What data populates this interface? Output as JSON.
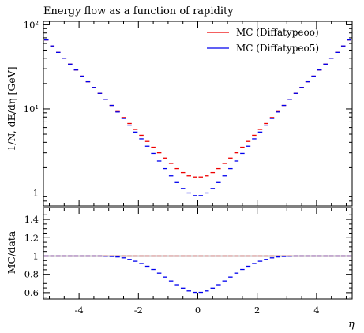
{
  "chart_data": [
    {
      "type": "line",
      "title": "Energy flow as a function of rapidity",
      "xlabel": "η",
      "ylabel": "1/N, dE/dη [GeV]",
      "yscale": "log",
      "ylim": [
        0.7,
        110
      ],
      "xlim": [
        -5.2,
        5.2
      ],
      "y_tick_labels": [
        "1",
        "10¹",
        "10²"
      ],
      "legend_position": "top-right",
      "x": [
        -5.1,
        -4.9,
        -4.7,
        -4.5,
        -4.3,
        -4.1,
        -3.9,
        -3.7,
        -3.5,
        -3.3,
        -3.1,
        -2.9,
        -2.7,
        -2.5,
        -2.3,
        -2.1,
        -1.9,
        -1.7,
        -1.5,
        -1.3,
        -1.1,
        -0.9,
        -0.7,
        -0.5,
        -0.3,
        -0.1,
        0.1,
        0.3,
        0.5,
        0.7,
        0.9,
        1.1,
        1.3,
        1.5,
        1.7,
        1.9,
        2.1,
        2.3,
        2.5,
        2.7,
        2.9,
        3.1,
        3.3,
        3.5,
        3.7,
        3.9,
        4.1,
        4.3,
        4.5,
        4.7,
        4.9,
        5.1
      ],
      "series": [
        {
          "name": "MC (Diffatypeoo)",
          "color": "#ee0000",
          "values": [
            66,
            56,
            47,
            40,
            34,
            29,
            24.5,
            21,
            18,
            15.3,
            13,
            11,
            9.3,
            7.9,
            6.7,
            5.7,
            4.85,
            4.1,
            3.5,
            3.0,
            2.6,
            2.25,
            1.95,
            1.75,
            1.6,
            1.55,
            1.55,
            1.6,
            1.75,
            1.95,
            2.25,
            2.6,
            3.0,
            3.5,
            4.1,
            4.85,
            5.7,
            6.7,
            7.9,
            9.3,
            11,
            13,
            15.3,
            18,
            21,
            24.5,
            29,
            34,
            40,
            47,
            56,
            66
          ]
        },
        {
          "name": "MC (Diffatypeo5)",
          "color": "#0000ee",
          "values": [
            66,
            56,
            47,
            40,
            34,
            29,
            24.5,
            21,
            18,
            15.3,
            13,
            11,
            9.2,
            7.7,
            6.4,
            5.3,
            4.4,
            3.6,
            2.95,
            2.4,
            1.95,
            1.6,
            1.33,
            1.13,
            1.0,
            0.93,
            0.93,
            1.0,
            1.13,
            1.33,
            1.6,
            1.95,
            2.4,
            2.95,
            3.6,
            4.4,
            5.3,
            6.4,
            7.7,
            9.2,
            11,
            13,
            15.3,
            18,
            21,
            24.5,
            29,
            34,
            40,
            47,
            56,
            66
          ]
        }
      ]
    },
    {
      "type": "line",
      "xlabel": "η",
      "ylabel": "MC/data",
      "ylim": [
        0.53,
        1.53
      ],
      "xlim": [
        -5.2,
        5.2
      ],
      "x_ticks": [
        -4,
        -2,
        0,
        2,
        4
      ],
      "y_ticks": [
        0.6,
        0.8,
        1,
        1.2,
        1.4
      ],
      "x": [
        -5.1,
        -4.9,
        -4.7,
        -4.5,
        -4.3,
        -4.1,
        -3.9,
        -3.7,
        -3.5,
        -3.3,
        -3.1,
        -2.9,
        -2.7,
        -2.5,
        -2.3,
        -2.1,
        -1.9,
        -1.7,
        -1.5,
        -1.3,
        -1.1,
        -0.9,
        -0.7,
        -0.5,
        -0.3,
        -0.1,
        0.1,
        0.3,
        0.5,
        0.7,
        0.9,
        1.1,
        1.3,
        1.5,
        1.7,
        1.9,
        2.1,
        2.3,
        2.5,
        2.7,
        2.9,
        3.1,
        3.3,
        3.5,
        3.7,
        3.9,
        4.1,
        4.3,
        4.5,
        4.7,
        4.9,
        5.1
      ],
      "series": [
        {
          "name": "MC (Diffatypeoo)",
          "color": "#ee0000",
          "values": [
            1,
            1,
            1,
            1,
            1,
            1,
            1,
            1,
            1,
            1,
            1,
            1,
            1,
            1,
            1,
            1,
            1,
            1,
            1,
            1,
            1,
            1,
            1,
            1,
            1,
            1,
            1,
            1,
            1,
            1,
            1,
            1,
            1,
            1,
            1,
            1,
            1,
            1,
            1,
            1,
            1,
            1,
            1,
            1,
            1,
            1,
            1,
            1,
            1,
            1,
            1,
            1
          ]
        },
        {
          "name": "MC (Diffatypeo5)",
          "color": "#0000ee",
          "values": [
            1,
            1,
            1,
            1,
            1,
            1,
            1,
            1,
            1,
            1,
            0.998,
            0.995,
            0.99,
            0.98,
            0.963,
            0.943,
            0.918,
            0.888,
            0.853,
            0.813,
            0.77,
            0.727,
            0.685,
            0.648,
            0.618,
            0.603,
            0.603,
            0.618,
            0.648,
            0.685,
            0.727,
            0.77,
            0.813,
            0.853,
            0.888,
            0.918,
            0.943,
            0.963,
            0.98,
            0.99,
            0.995,
            0.998,
            1,
            1,
            1,
            1,
            1,
            1,
            1,
            1,
            1,
            1
          ]
        }
      ]
    }
  ]
}
